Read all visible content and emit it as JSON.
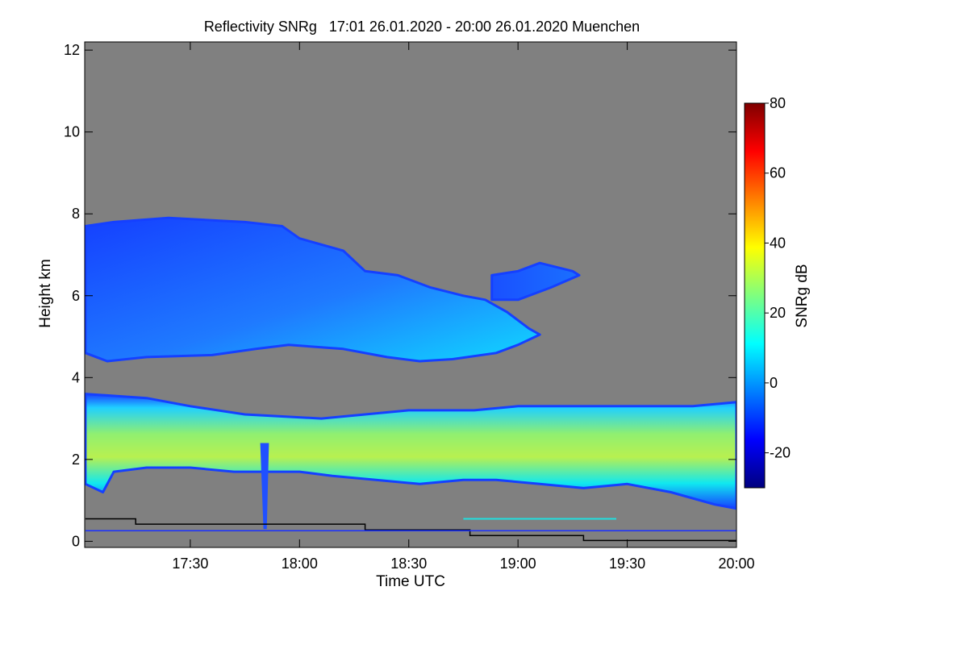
{
  "chart_data": {
    "type": "heatmap",
    "title": "Reflectivity SNRg   17:01 26.01.2020 - 20:00 26.01.2020 Muenchen",
    "xlabel": "Time UTC",
    "ylabel": "Height km",
    "x_range_utc": [
      "17:01",
      "20:00"
    ],
    "x_ticks": [
      {
        "label": "17:30",
        "hour": 17.5
      },
      {
        "label": "18:00",
        "hour": 18.0
      },
      {
        "label": "18:30",
        "hour": 18.5
      },
      {
        "label": "19:00",
        "hour": 19.0
      },
      {
        "label": "19:30",
        "hour": 19.5
      },
      {
        "label": "20:00",
        "hour": 20.0
      }
    ],
    "xlim_hours": [
      17.0167,
      20.0
    ],
    "ylim_km": [
      -0.15,
      12.2
    ],
    "y_ticks": [
      0,
      2,
      4,
      6,
      8,
      10,
      12
    ],
    "colorbar": {
      "label": "SNRg dB",
      "range": [
        -30,
        80
      ],
      "ticks": [
        -20,
        0,
        20,
        40,
        60,
        80
      ],
      "colors": [
        "#00007f",
        "#0000ff",
        "#007fff",
        "#00ffff",
        "#7fff7f",
        "#ffff00",
        "#ff7f00",
        "#ff0000",
        "#7f0000"
      ]
    },
    "background_color": "#808080",
    "cloud_layers": [
      {
        "name": "upper-cloud",
        "color_low": "#1540ff",
        "color_high": "#10d8ff",
        "snr_range_db": [
          -20,
          10
        ],
        "top": [
          [
            17.02,
            7.7
          ],
          [
            17.15,
            7.8
          ],
          [
            17.4,
            7.9
          ],
          [
            17.75,
            7.8
          ],
          [
            17.92,
            7.7
          ],
          [
            18.0,
            7.4
          ],
          [
            18.2,
            7.1
          ],
          [
            18.3,
            6.6
          ],
          [
            18.45,
            6.5
          ],
          [
            18.6,
            6.2
          ],
          [
            18.75,
            6.0
          ],
          [
            18.85,
            5.9
          ],
          [
            18.95,
            5.6
          ],
          [
            19.05,
            5.2
          ],
          [
            19.1,
            5.05
          ]
        ],
        "base": [
          [
            19.1,
            5.05
          ],
          [
            19.0,
            4.8
          ],
          [
            18.9,
            4.6
          ],
          [
            18.7,
            4.45
          ],
          [
            18.55,
            4.4
          ],
          [
            18.4,
            4.5
          ],
          [
            18.2,
            4.7
          ],
          [
            17.95,
            4.8
          ],
          [
            17.8,
            4.7
          ],
          [
            17.6,
            4.55
          ],
          [
            17.3,
            4.5
          ],
          [
            17.12,
            4.4
          ],
          [
            17.02,
            4.6
          ]
        ]
      },
      {
        "name": "mid-cloud-fragment",
        "color_low": "#1540ff",
        "color_high": "#1a70ff",
        "snr_range_db": [
          -20,
          -5
        ],
        "top": [
          [
            18.88,
            6.5
          ],
          [
            19.0,
            6.6
          ],
          [
            19.1,
            6.8
          ],
          [
            19.25,
            6.6
          ],
          [
            19.28,
            6.5
          ]
        ],
        "base": [
          [
            19.28,
            6.5
          ],
          [
            19.15,
            6.2
          ],
          [
            19.0,
            5.9
          ],
          [
            18.88,
            5.9
          ]
        ]
      },
      {
        "name": "lower-cloud",
        "color_low": "#1540ff",
        "color_high": "#c0f040",
        "snr_range_db": [
          -20,
          30
        ],
        "top": [
          [
            17.02,
            3.6
          ],
          [
            17.3,
            3.5
          ],
          [
            17.5,
            3.3
          ],
          [
            17.75,
            3.1
          ],
          [
            18.1,
            3.0
          ],
          [
            18.3,
            3.1
          ],
          [
            18.5,
            3.2
          ],
          [
            18.8,
            3.2
          ],
          [
            19.0,
            3.3
          ],
          [
            19.3,
            3.3
          ],
          [
            19.5,
            3.3
          ],
          [
            19.8,
            3.3
          ],
          [
            20.0,
            3.4
          ]
        ],
        "base": [
          [
            20.0,
            0.8
          ],
          [
            19.9,
            0.9
          ],
          [
            19.7,
            1.2
          ],
          [
            19.5,
            1.4
          ],
          [
            19.3,
            1.3
          ],
          [
            19.1,
            1.4
          ],
          [
            18.9,
            1.5
          ],
          [
            18.75,
            1.5
          ],
          [
            18.55,
            1.4
          ],
          [
            18.35,
            1.5
          ],
          [
            18.15,
            1.6
          ],
          [
            18.0,
            1.7
          ],
          [
            17.85,
            1.7
          ],
          [
            17.7,
            1.7
          ],
          [
            17.5,
            1.8
          ],
          [
            17.3,
            1.8
          ],
          [
            17.15,
            1.7
          ],
          [
            17.1,
            1.2
          ],
          [
            17.02,
            1.4
          ]
        ]
      }
    ],
    "precip_streak": {
      "x": [
        17.82,
        17.86
      ],
      "y_top": 2.4,
      "y_bottom": 0.3,
      "color": "#2050ff"
    },
    "surface_lines": [
      {
        "name": "black-step-line",
        "color": "#000000",
        "points": [
          [
            17.02,
            0.55
          ],
          [
            17.25,
            0.55
          ],
          [
            17.25,
            0.42
          ],
          [
            18.3,
            0.42
          ],
          [
            18.3,
            0.28
          ],
          [
            18.78,
            0.28
          ],
          [
            18.78,
            0.14
          ],
          [
            19.3,
            0.14
          ],
          [
            19.3,
            0.02
          ],
          [
            20.0,
            0.02
          ]
        ]
      },
      {
        "name": "blue-surface-line",
        "color": "#1a30ff",
        "points": [
          [
            17.02,
            0.26
          ],
          [
            20.0,
            0.26
          ]
        ]
      },
      {
        "name": "cyan-surface-streak",
        "color": "#20e0e0",
        "points": [
          [
            18.75,
            0.55
          ],
          [
            19.45,
            0.55
          ]
        ]
      }
    ]
  }
}
